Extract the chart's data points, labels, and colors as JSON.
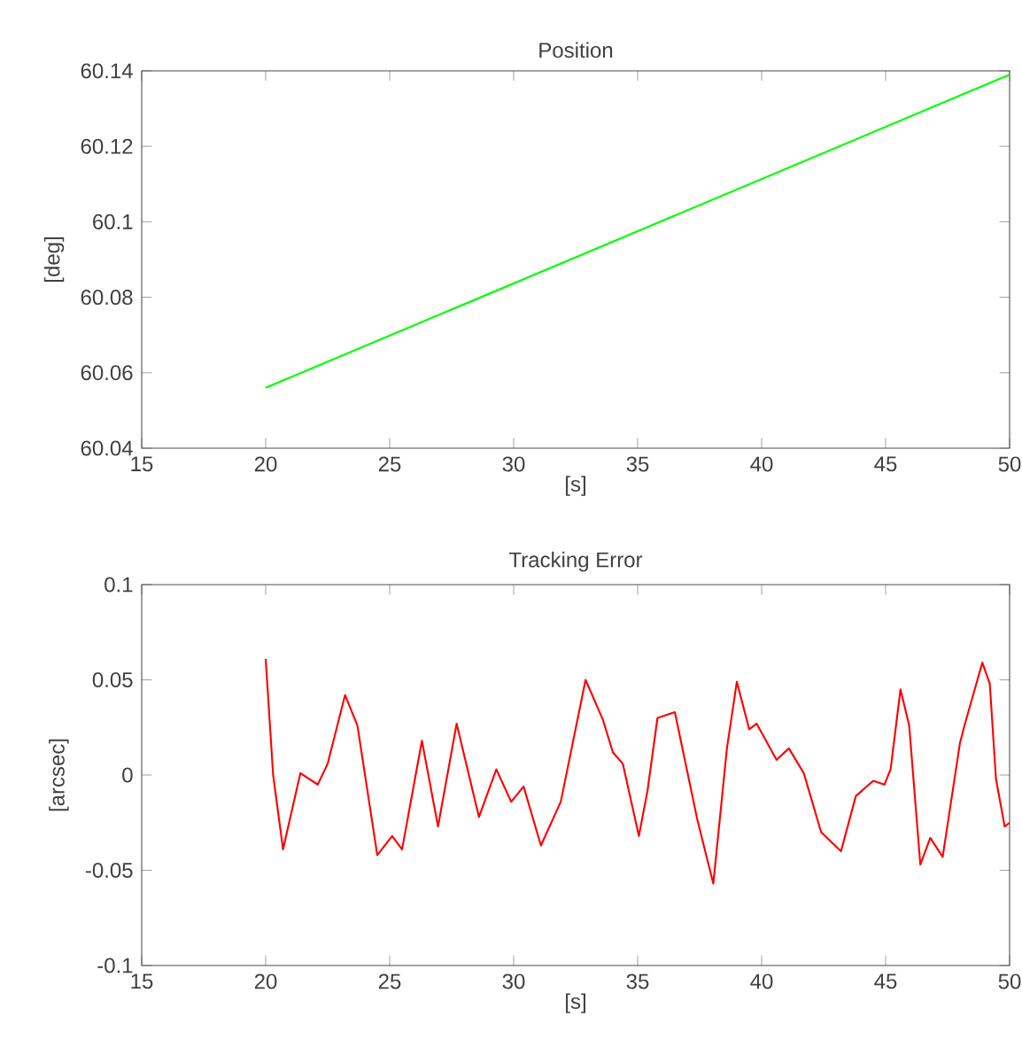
{
  "chart_data": [
    {
      "type": "line",
      "title": "Position",
      "xlabel": "[s]",
      "ylabel": "[deg]",
      "x": [
        20,
        50
      ],
      "values": [
        60.056,
        60.139
      ],
      "color": "#00ff00",
      "xlim": [
        15,
        50
      ],
      "ylim": [
        60.04,
        60.14
      ],
      "xticks": [
        15,
        20,
        25,
        30,
        35,
        40,
        45,
        50
      ],
      "yticks": [
        60.04,
        60.06,
        60.08,
        60.1,
        60.12,
        60.14
      ]
    },
    {
      "type": "line",
      "title": "Tracking Error",
      "xlabel": "[s]",
      "ylabel": "[arcsec]",
      "x": [
        20,
        20.3,
        20.7,
        21.4,
        22.1,
        22.5,
        23.2,
        23.7,
        24.5,
        25.1,
        25.5,
        26.3,
        26.95,
        27.7,
        28.6,
        29.3,
        29.9,
        30.4,
        31.1,
        31.9,
        32.9,
        33.6,
        34.0,
        34.4,
        35.05,
        35.4,
        35.8,
        36.5,
        37.4,
        38.05,
        38.6,
        39.0,
        39.5,
        39.8,
        40.6,
        41.1,
        41.7,
        42.4,
        43.2,
        43.8,
        44.5,
        44.95,
        45.2,
        45.6,
        45.95,
        46.4,
        46.8,
        47.3,
        48.0,
        48.2,
        48.9,
        49.2,
        49.45,
        49.8,
        50
      ],
      "values": [
        0.061,
        0,
        -0.039,
        0.001,
        -0.005,
        0.006,
        0.042,
        0.026,
        -0.042,
        -0.032,
        -0.039,
        0.018,
        -0.027,
        0.027,
        -0.022,
        0.003,
        -0.014,
        -0.006,
        -0.037,
        -0.014,
        0.05,
        0.029,
        0.012,
        0.006,
        -0.032,
        -0.008,
        0.03,
        0.033,
        -0.023,
        -0.057,
        0.014,
        0.049,
        0.024,
        0.027,
        0.008,
        0.014,
        0.001,
        -0.03,
        -0.04,
        -0.011,
        -0.003,
        -0.005,
        0.003,
        0.045,
        0.026,
        -0.047,
        -0.033,
        -0.043,
        0.017,
        0.027,
        0.059,
        0.048,
        -0.002,
        -0.027,
        -0.025
      ],
      "color": "#ff0000",
      "xlim": [
        15,
        50
      ],
      "ylim": [
        -0.1,
        0.1
      ],
      "xticks": [
        15,
        20,
        25,
        30,
        35,
        40,
        45,
        50
      ],
      "yticks": [
        -0.1,
        -0.05,
        0,
        0.05,
        0.1
      ]
    }
  ]
}
